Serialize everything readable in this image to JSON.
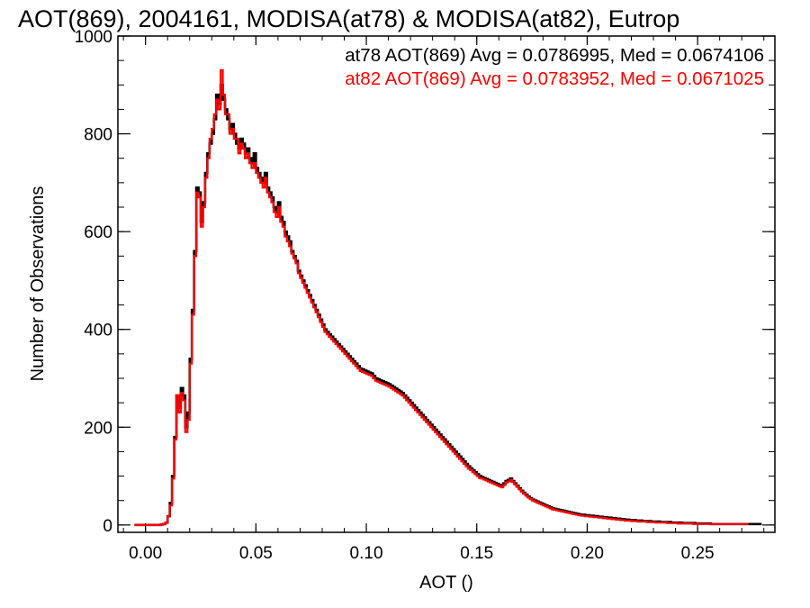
{
  "chart_data": {
    "type": "line",
    "style": "histogram-step",
    "title": "AOT(869), 2004161, MODISA(at78) & MODISA(at82), Eutrop",
    "xlabel": "AOT ()",
    "ylabel": "Number of Observations",
    "xlim": [
      -0.0125,
      0.285
    ],
    "ylim": [
      -15,
      1000
    ],
    "x_ticks": [
      0.0,
      0.05,
      0.1,
      0.15,
      0.2,
      0.25
    ],
    "x_tick_labels": [
      "0.00",
      "0.05",
      "0.10",
      "0.15",
      "0.20",
      "0.25"
    ],
    "y_ticks": [
      0,
      200,
      400,
      600,
      800,
      1000
    ],
    "y_tick_labels": [
      "0",
      "200",
      "400",
      "600",
      "800",
      "1000"
    ],
    "grid": false,
    "legend_placement": "top-right",
    "bin_width": 0.001,
    "x_start": -0.005,
    "series": [
      {
        "name": "at78",
        "color": "#000000",
        "annotation": "at78 AOT(869) Avg = 0.0786995, Med = 0.0674106",
        "values": [
          0,
          0,
          0,
          0,
          0,
          0,
          0,
          0,
          0,
          0,
          0,
          0,
          1,
          2,
          5,
          18,
          45,
          100,
          180,
          265,
          240,
          280,
          265,
          200,
          230,
          340,
          440,
          560,
          690,
          680,
          620,
          660,
          720,
          760,
          780,
          800,
          830,
          880,
          860,
          900,
          870,
          850,
          830,
          810,
          820,
          800,
          780,
          770,
          790,
          780,
          760,
          770,
          750,
          740,
          760,
          730,
          720,
          710,
          700,
          720,
          690,
          680,
          670,
          650,
          640,
          660,
          630,
          620,
          600,
          590,
          580,
          560,
          550,
          540,
          520,
          510,
          500,
          490,
          480,
          470,
          460,
          450,
          440,
          430,
          420,
          410,
          400,
          395,
          390,
          385,
          380,
          375,
          370,
          365,
          360,
          355,
          350,
          345,
          340,
          335,
          330,
          325,
          320,
          318,
          316,
          314,
          312,
          310,
          305,
          300,
          298,
          296,
          294,
          292,
          290,
          288,
          285,
          282,
          279,
          276,
          273,
          270,
          265,
          260,
          255,
          250,
          245,
          240,
          235,
          230,
          225,
          220,
          215,
          210,
          205,
          200,
          195,
          190,
          185,
          180,
          175,
          170,
          165,
          160,
          155,
          150,
          145,
          140,
          135,
          130,
          125,
          120,
          116,
          112,
          108,
          104,
          100,
          98,
          96,
          94,
          92,
          90,
          88,
          86,
          84,
          82,
          80,
          85,
          90,
          92,
          95,
          90,
          85,
          80,
          75,
          70,
          66,
          62,
          58,
          55,
          52,
          50,
          48,
          46,
          44,
          42,
          40,
          38,
          36,
          34,
          33,
          32,
          31,
          30,
          29,
          28,
          27,
          26,
          25,
          24,
          23,
          22,
          21,
          21,
          20,
          20,
          19,
          19,
          18,
          18,
          17,
          17,
          16,
          16,
          15,
          15,
          14,
          14,
          13,
          13,
          12,
          12,
          11,
          11,
          10,
          10,
          10,
          9,
          9,
          9,
          8,
          8,
          8,
          8,
          7,
          7,
          7,
          7,
          6,
          6,
          6,
          6,
          6,
          5,
          5,
          5,
          5,
          5,
          4,
          4,
          4,
          4,
          4,
          4,
          3,
          3,
          3,
          3,
          3,
          3,
          3,
          2,
          2,
          2,
          2,
          2,
          2,
          2,
          2,
          2,
          2,
          2,
          2,
          2,
          2,
          2,
          2,
          2,
          2,
          2,
          2,
          2,
          2,
          2
        ]
      },
      {
        "name": "at82",
        "color": "#ff0000",
        "annotation": "at82 AOT(869) Avg = 0.0783952, Med = 0.0671025",
        "values": [
          0,
          0,
          0,
          0,
          0,
          0,
          0,
          0,
          0,
          0,
          0,
          0,
          1,
          2,
          5,
          18,
          40,
          95,
          175,
          265,
          230,
          270,
          255,
          190,
          215,
          330,
          430,
          550,
          680,
          670,
          610,
          650,
          710,
          750,
          790,
          810,
          840,
          870,
          850,
          930,
          880,
          840,
          840,
          800,
          810,
          790,
          790,
          760,
          780,
          770,
          750,
          760,
          740,
          730,
          740,
          720,
          710,
          700,
          690,
          710,
          680,
          670,
          660,
          640,
          630,
          650,
          620,
          610,
          590,
          580,
          570,
          555,
          545,
          535,
          515,
          505,
          495,
          485,
          475,
          465,
          455,
          445,
          435,
          425,
          415,
          405,
          395,
          390,
          385,
          380,
          375,
          370,
          365,
          360,
          355,
          350,
          345,
          340,
          335,
          330,
          325,
          320,
          315,
          313,
          311,
          309,
          307,
          305,
          300,
          295,
          293,
          291,
          289,
          287,
          285,
          283,
          280,
          277,
          274,
          271,
          268,
          265,
          260,
          255,
          250,
          245,
          240,
          235,
          230,
          225,
          220,
          215,
          210,
          205,
          200,
          195,
          190,
          185,
          180,
          175,
          170,
          165,
          160,
          155,
          150,
          145,
          140,
          135,
          130,
          125,
          120,
          115,
          112,
          108,
          104,
          100,
          96,
          95,
          93,
          91,
          89,
          87,
          85,
          83,
          81,
          79,
          77,
          82,
          87,
          89,
          92,
          88,
          83,
          78,
          73,
          68,
          64,
          60,
          56,
          53,
          50,
          48,
          46,
          44,
          42,
          40,
          38,
          36,
          34,
          32,
          31,
          30,
          29,
          28,
          27,
          26,
          25,
          24,
          23,
          22,
          21,
          20,
          19,
          19,
          18,
          18,
          17,
          17,
          16,
          16,
          15,
          15,
          14,
          14,
          13,
          13,
          12,
          12,
          11,
          11,
          10,
          10,
          9,
          9,
          9,
          8,
          8,
          8,
          7,
          7,
          7,
          7,
          6,
          6,
          6,
          6,
          5,
          5,
          5,
          5,
          5,
          4,
          4,
          4,
          4,
          4,
          3,
          3,
          3,
          3,
          3,
          3,
          3,
          2,
          2,
          2,
          2,
          2,
          2,
          2,
          2,
          2,
          2,
          2,
          2,
          2,
          2,
          2,
          2,
          2,
          2,
          2,
          2,
          2,
          2,
          2,
          2,
          2
        ]
      }
    ]
  }
}
